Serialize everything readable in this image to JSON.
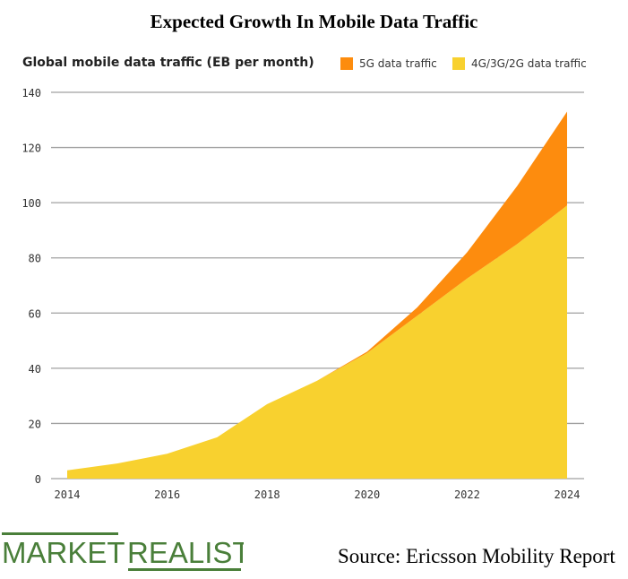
{
  "title": "Expected Growth In Mobile Data Traffic",
  "source": "Source: Ericsson Mobility Report",
  "logo": {
    "word1": "MARKET",
    "word2": "REALIST",
    "color": "#4a7f3a"
  },
  "chart_data": {
    "type": "area",
    "stacked": true,
    "ylabel": "Global mobile data traffic (EB per month)",
    "x": [
      2014,
      2015,
      2016,
      2017,
      2018,
      2019,
      2020,
      2021,
      2022,
      2023,
      2024
    ],
    "xticks": [
      "2014",
      "2016",
      "2018",
      "2020",
      "2022",
      "2024"
    ],
    "yticks": [
      "0",
      "20",
      "40",
      "60",
      "80",
      "100",
      "120",
      "140"
    ],
    "ylim": [
      0,
      140
    ],
    "grid": true,
    "legend_placement": "top-right",
    "series": [
      {
        "name": "4G/3G/2G data traffic",
        "color": "#f8d12f",
        "values": [
          3,
          5.5,
          9,
          15,
          27,
          35.5,
          45.5,
          59,
          72.5,
          85,
          99
        ]
      },
      {
        "name": "5G data traffic",
        "color": "#fd8c0e",
        "values": [
          0,
          0,
          0,
          0,
          0,
          0,
          0.5,
          3,
          9.5,
          21,
          34
        ]
      }
    ]
  }
}
